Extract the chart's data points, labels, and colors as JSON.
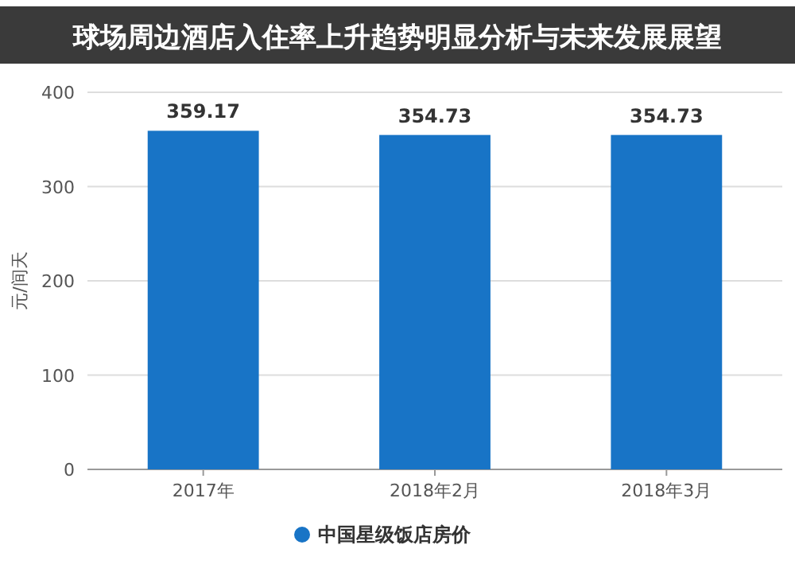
{
  "chart_data": {
    "type": "bar",
    "title": "球场周边酒店入住率上升趋势明显分析与未来发展展望",
    "ylabel": "元/间天",
    "categories": [
      "2017年",
      "2018年2月",
      "2018年3月"
    ],
    "series": [
      {
        "name": "中国星级饭店房价",
        "color": "#1874c6",
        "values": [
          359.17,
          354.73,
          354.73
        ]
      }
    ],
    "ylim": [
      0,
      400
    ],
    "yticks": [
      0,
      100,
      200,
      300,
      400
    ],
    "grid": "y",
    "legend": "bottom",
    "data_labels": true
  }
}
